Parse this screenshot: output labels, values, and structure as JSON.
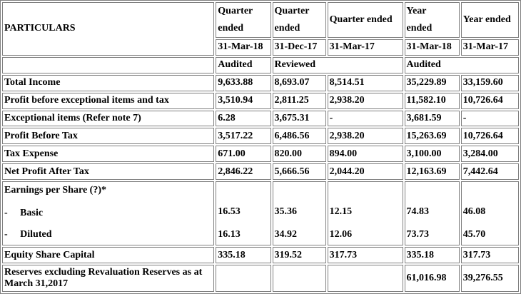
{
  "header": {
    "particulars": "PARTICULARS",
    "col1": [
      "Quarter",
      "ended"
    ],
    "col2": [
      "Quarter",
      "ended"
    ],
    "col3": "Quarter ended",
    "col4": [
      "Year",
      "ended"
    ],
    "col5": "Year ended",
    "dates": [
      "31-Mar-18",
      "31-Dec-17",
      "31-Mar-17",
      "31-Mar-18",
      "31-Mar-17"
    ],
    "status_audited_1": "Audited",
    "status_reviewed": "Reviewed",
    "status_audited_2": "Audited"
  },
  "rows": [
    {
      "label": "Total Income",
      "values": [
        "9,633.88",
        "8,693.07",
        "8,514.51",
        "35,229.89",
        "33,159.60"
      ]
    },
    {
      "label": "Profit before exceptional items and tax",
      "values": [
        "3,510.94",
        "2,811.25",
        "2,938.20",
        "11,582.10",
        "10,726.64"
      ]
    },
    {
      "label": "Exceptional items (Refer note 7)",
      "values": [
        "6.28",
        "3,675.31",
        "-",
        "3,681.59",
        "-"
      ]
    },
    {
      "label": "Profit Before Tax",
      "values": [
        "3,517.22",
        "6,486.56",
        "2,938.20",
        "15,263.69",
        "10,726.64"
      ]
    },
    {
      "label": "Tax Expense",
      "values": [
        "671.00",
        "820.00",
        "894.00",
        "3,100.00",
        "3,284.00"
      ]
    },
    {
      "label": "Net Profit After Tax",
      "values": [
        "2,846.22",
        "5,666.56",
        "2,044.20",
        "12,163.69",
        "7,442.64"
      ]
    }
  ],
  "eps": {
    "label": "Earnings per Share (?)*",
    "basic_label": "-     Basic",
    "diluted_label": "-     Diluted",
    "basic": [
      "16.53",
      "35.36",
      "12.15",
      "74.83",
      "46.08"
    ],
    "diluted": [
      "16.13",
      "34.92",
      "12.06",
      "73.73",
      "45.70"
    ]
  },
  "equity": {
    "label": "Equity Share Capital",
    "values": [
      "335.18",
      "319.52",
      "317.73",
      "335.18",
      "317.73"
    ]
  },
  "reserves": {
    "label": "Reserves excluding Revaluation Reserves as at March 31,2017",
    "values": [
      "",
      "",
      "",
      "61,016.98",
      "39,276.55"
    ]
  }
}
